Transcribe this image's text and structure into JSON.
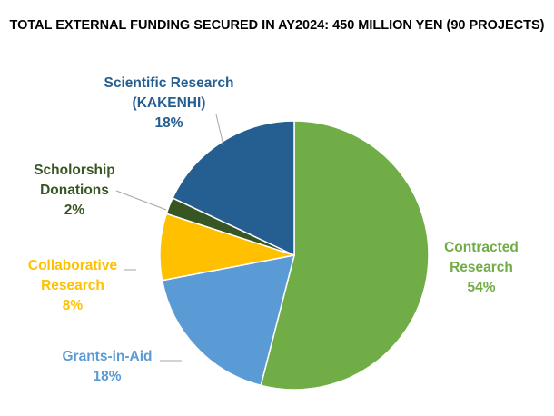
{
  "chart_data": {
    "type": "pie",
    "title": "TOTAL EXTERNAL FUNDING SECURED IN AY2024: 450 MILLION YEN (90 PROJECTS)",
    "slices": [
      {
        "name": "Contracted Research",
        "label_lines": [
          "Contracted",
          "Research"
        ],
        "percent_label": "54%",
        "value": 54,
        "color": "#70ad47"
      },
      {
        "name": "Grants-in-Aid",
        "label_lines": [
          "Grants-in-Aid"
        ],
        "percent_label": "18%",
        "value": 18,
        "color": "#5b9bd5"
      },
      {
        "name": "Collaborative Research",
        "label_lines": [
          "Collaborative",
          "Research"
        ],
        "percent_label": "8%",
        "value": 8,
        "color": "#ffc000"
      },
      {
        "name": "Scholorship Donations",
        "label_lines": [
          "Scholorship",
          "Donations"
        ],
        "percent_label": "2%",
        "value": 2,
        "color": "#375623"
      },
      {
        "name": "Scientific Research (KAKENHI)",
        "label_lines": [
          "Scientific Research",
          "(KAKENHI)"
        ],
        "percent_label": "18%",
        "value": 18,
        "color": "#255e91"
      }
    ],
    "start_angle": "12 o'clock",
    "direction": "clockwise",
    "legend": "none"
  }
}
